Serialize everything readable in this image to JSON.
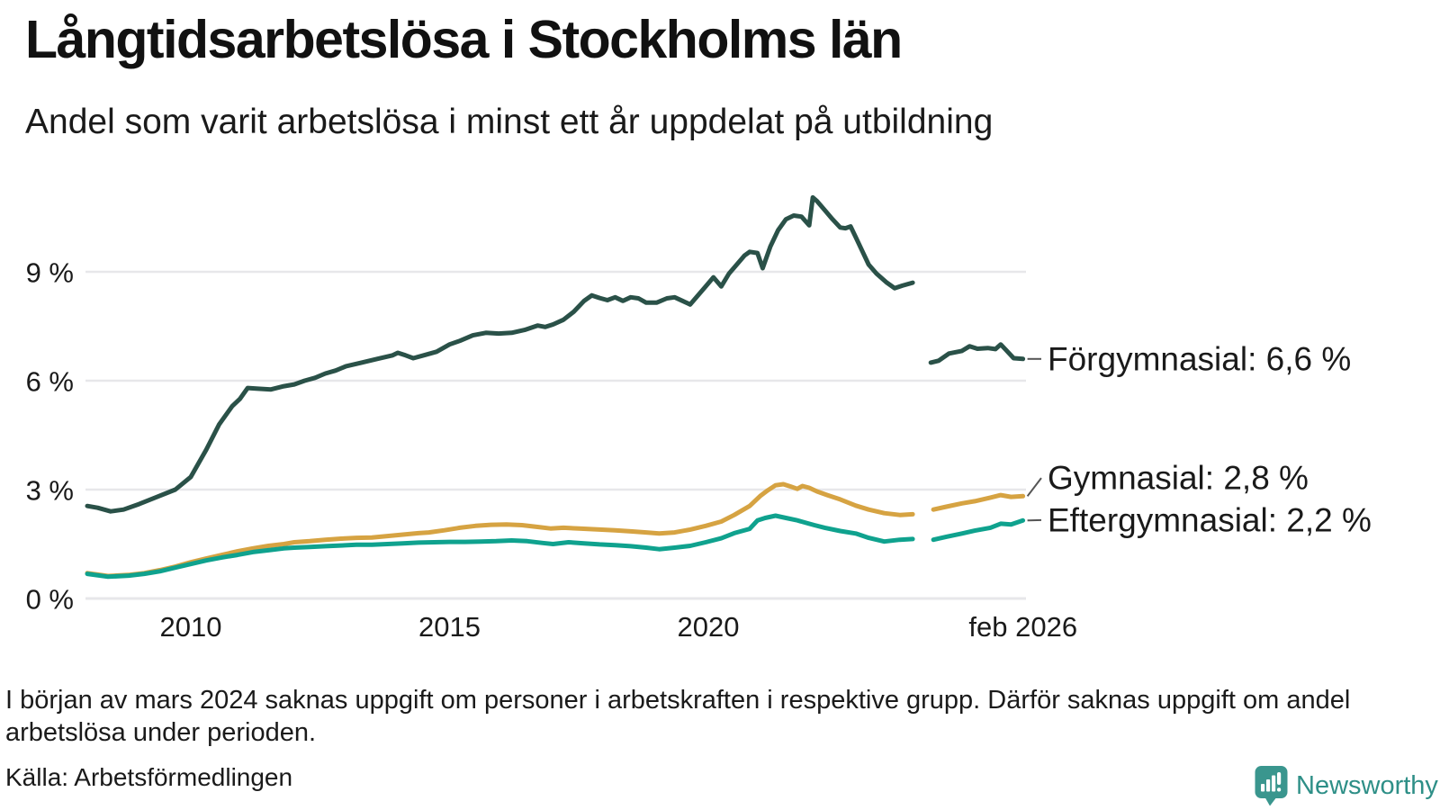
{
  "header": {
    "title": "Långtidsarbetslösa i Stockholms län",
    "subtitle": "Andel som varit arbetslösa i minst ett år uppdelat på utbildning"
  },
  "chart_data": {
    "type": "line",
    "unit": "%",
    "grid_color": "#e7e7ea",
    "text_color": "#1a1a1a",
    "x_axis": {
      "ticks": [
        {
          "label": "2010",
          "year": 2010
        },
        {
          "label": "2015",
          "year": 2015
        },
        {
          "label": "2020",
          "year": 2020
        },
        {
          "label": "feb 2026",
          "year": 2026.083
        }
      ]
    },
    "y_axis": {
      "ticks": [
        {
          "label": "0 %",
          "value": 0
        },
        {
          "label": "3 %",
          "value": 3
        },
        {
          "label": "6 %",
          "value": 6
        },
        {
          "label": "9 %",
          "value": 9
        }
      ],
      "max": 11.3
    },
    "series": [
      {
        "name": "Förgymnasial",
        "color": "#2a5148",
        "end_label": "Förgymnasial: 6,6 %",
        "end_value": "6,6 %",
        "label_value": 6.6,
        "segments": [
          [
            [
              2008.0,
              2.55
            ],
            [
              2008.2,
              2.5
            ],
            [
              2008.45,
              2.4
            ],
            [
              2008.7,
              2.45
            ],
            [
              2009.0,
              2.6
            ],
            [
              2009.35,
              2.8
            ],
            [
              2009.7,
              3.0
            ],
            [
              2010.0,
              3.35
            ],
            [
              2010.3,
              4.1
            ],
            [
              2010.55,
              4.8
            ],
            [
              2010.8,
              5.3
            ],
            [
              2010.95,
              5.5
            ],
            [
              2011.1,
              5.8
            ],
            [
              2011.3,
              5.78
            ],
            [
              2011.55,
              5.76
            ],
            [
              2011.8,
              5.85
            ],
            [
              2012.0,
              5.9
            ],
            [
              2012.2,
              6.0
            ],
            [
              2012.4,
              6.08
            ],
            [
              2012.6,
              6.2
            ],
            [
              2012.8,
              6.28
            ],
            [
              2013.0,
              6.4
            ],
            [
              2013.3,
              6.5
            ],
            [
              2013.6,
              6.6
            ],
            [
              2013.9,
              6.7
            ],
            [
              2014.0,
              6.77
            ],
            [
              2014.15,
              6.7
            ],
            [
              2014.3,
              6.62
            ],
            [
              2014.5,
              6.7
            ],
            [
              2014.75,
              6.8
            ],
            [
              2015.0,
              7.0
            ],
            [
              2015.2,
              7.1
            ],
            [
              2015.45,
              7.25
            ],
            [
              2015.7,
              7.32
            ],
            [
              2015.95,
              7.3
            ],
            [
              2016.2,
              7.32
            ],
            [
              2016.45,
              7.4
            ],
            [
              2016.7,
              7.52
            ],
            [
              2016.85,
              7.48
            ],
            [
              2017.0,
              7.55
            ],
            [
              2017.2,
              7.68
            ],
            [
              2017.4,
              7.9
            ],
            [
              2017.6,
              8.2
            ],
            [
              2017.75,
              8.35
            ],
            [
              2017.9,
              8.28
            ],
            [
              2018.05,
              8.22
            ],
            [
              2018.2,
              8.3
            ],
            [
              2018.35,
              8.2
            ],
            [
              2018.5,
              8.3
            ],
            [
              2018.65,
              8.27
            ],
            [
              2018.8,
              8.15
            ],
            [
              2019.0,
              8.15
            ],
            [
              2019.2,
              8.27
            ],
            [
              2019.35,
              8.3
            ],
            [
              2019.5,
              8.2
            ],
            [
              2019.65,
              8.1
            ],
            [
              2019.8,
              8.35
            ],
            [
              2019.95,
              8.6
            ],
            [
              2020.1,
              8.85
            ],
            [
              2020.25,
              8.6
            ],
            [
              2020.4,
              8.95
            ],
            [
              2020.55,
              9.2
            ],
            [
              2020.7,
              9.45
            ],
            [
              2020.8,
              9.55
            ],
            [
              2020.95,
              9.52
            ],
            [
              2021.05,
              9.1
            ],
            [
              2021.2,
              9.7
            ],
            [
              2021.35,
              10.15
            ],
            [
              2021.5,
              10.45
            ],
            [
              2021.65,
              10.55
            ],
            [
              2021.8,
              10.52
            ],
            [
              2021.95,
              10.28
            ],
            [
              2022.02,
              11.05
            ],
            [
              2022.1,
              10.95
            ],
            [
              2022.25,
              10.7
            ],
            [
              2022.4,
              10.45
            ],
            [
              2022.55,
              10.22
            ],
            [
              2022.65,
              10.2
            ],
            [
              2022.75,
              10.25
            ],
            [
              2022.85,
              9.95
            ],
            [
              2023.0,
              9.5
            ],
            [
              2023.1,
              9.2
            ],
            [
              2023.25,
              8.95
            ],
            [
              2023.45,
              8.7
            ],
            [
              2023.6,
              8.55
            ],
            [
              2023.75,
              8.62
            ],
            [
              2023.95,
              8.7
            ]
          ],
          [
            [
              2024.3,
              6.5
            ],
            [
              2024.45,
              6.55
            ],
            [
              2024.65,
              6.75
            ],
            [
              2024.9,
              6.82
            ],
            [
              2025.05,
              6.95
            ],
            [
              2025.2,
              6.88
            ],
            [
              2025.4,
              6.9
            ],
            [
              2025.55,
              6.87
            ],
            [
              2025.65,
              7.0
            ],
            [
              2025.75,
              6.85
            ],
            [
              2025.9,
              6.62
            ],
            [
              2026.08,
              6.6
            ]
          ]
        ]
      },
      {
        "name": "Gymnasial",
        "color": "#d6a342",
        "end_label": "Gymnasial: 2,8 %",
        "end_value": "2,8 %",
        "label_value": 3.32,
        "segments": [
          [
            [
              2008.0,
              0.7
            ],
            [
              2008.4,
              0.62
            ],
            [
              2008.8,
              0.65
            ],
            [
              2009.1,
              0.7
            ],
            [
              2009.4,
              0.78
            ],
            [
              2009.7,
              0.88
            ],
            [
              2010.0,
              1.0
            ],
            [
              2010.3,
              1.1
            ],
            [
              2010.6,
              1.2
            ],
            [
              2010.9,
              1.3
            ],
            [
              2011.2,
              1.38
            ],
            [
              2011.5,
              1.45
            ],
            [
              2011.8,
              1.5
            ],
            [
              2012.0,
              1.55
            ],
            [
              2012.3,
              1.58
            ],
            [
              2012.6,
              1.62
            ],
            [
              2012.9,
              1.65
            ],
            [
              2013.2,
              1.67
            ],
            [
              2013.5,
              1.68
            ],
            [
              2013.8,
              1.72
            ],
            [
              2014.1,
              1.76
            ],
            [
              2014.4,
              1.8
            ],
            [
              2014.6,
              1.82
            ],
            [
              2014.9,
              1.88
            ],
            [
              2015.2,
              1.95
            ],
            [
              2015.5,
              2.0
            ],
            [
              2015.8,
              2.03
            ],
            [
              2016.1,
              2.04
            ],
            [
              2016.4,
              2.02
            ],
            [
              2016.7,
              1.97
            ],
            [
              2016.95,
              1.93
            ],
            [
              2017.2,
              1.95
            ],
            [
              2017.5,
              1.93
            ],
            [
              2017.9,
              1.9
            ],
            [
              2018.2,
              1.88
            ],
            [
              2018.5,
              1.85
            ],
            [
              2018.8,
              1.82
            ],
            [
              2019.05,
              1.79
            ],
            [
              2019.35,
              1.82
            ],
            [
              2019.65,
              1.9
            ],
            [
              2019.95,
              2.0
            ],
            [
              2020.25,
              2.12
            ],
            [
              2020.5,
              2.3
            ],
            [
              2020.8,
              2.55
            ],
            [
              2021.0,
              2.82
            ],
            [
              2021.15,
              2.98
            ],
            [
              2021.3,
              3.12
            ],
            [
              2021.45,
              3.15
            ],
            [
              2021.6,
              3.08
            ],
            [
              2021.72,
              3.02
            ],
            [
              2021.82,
              3.1
            ],
            [
              2021.95,
              3.05
            ],
            [
              2022.1,
              2.95
            ],
            [
              2022.3,
              2.85
            ],
            [
              2022.55,
              2.73
            ],
            [
              2022.85,
              2.56
            ],
            [
              2023.1,
              2.45
            ],
            [
              2023.4,
              2.35
            ],
            [
              2023.7,
              2.3
            ],
            [
              2023.95,
              2.32
            ]
          ],
          [
            [
              2024.35,
              2.45
            ],
            [
              2024.6,
              2.53
            ],
            [
              2024.9,
              2.62
            ],
            [
              2025.15,
              2.68
            ],
            [
              2025.45,
              2.78
            ],
            [
              2025.65,
              2.85
            ],
            [
              2025.85,
              2.8
            ],
            [
              2026.08,
              2.82
            ]
          ]
        ]
      },
      {
        "name": "Eftergymnasial",
        "color": "#0fa28e",
        "end_label": "Eftergymnasial: 2,2 %",
        "end_value": "2,2 %",
        "label_value": 2.16,
        "segments": [
          [
            [
              2008.0,
              0.68
            ],
            [
              2008.4,
              0.6
            ],
            [
              2008.8,
              0.63
            ],
            [
              2009.1,
              0.68
            ],
            [
              2009.4,
              0.75
            ],
            [
              2009.7,
              0.85
            ],
            [
              2010.0,
              0.95
            ],
            [
              2010.3,
              1.05
            ],
            [
              2010.6,
              1.13
            ],
            [
              2010.9,
              1.2
            ],
            [
              2011.2,
              1.28
            ],
            [
              2011.5,
              1.33
            ],
            [
              2011.8,
              1.38
            ],
            [
              2012.0,
              1.4
            ],
            [
              2012.3,
              1.42
            ],
            [
              2012.6,
              1.44
            ],
            [
              2012.9,
              1.46
            ],
            [
              2013.2,
              1.48
            ],
            [
              2013.5,
              1.48
            ],
            [
              2013.8,
              1.5
            ],
            [
              2014.1,
              1.52
            ],
            [
              2014.4,
              1.54
            ],
            [
              2014.7,
              1.55
            ],
            [
              2015.0,
              1.56
            ],
            [
              2015.3,
              1.56
            ],
            [
              2015.6,
              1.57
            ],
            [
              2015.9,
              1.58
            ],
            [
              2016.2,
              1.6
            ],
            [
              2016.5,
              1.58
            ],
            [
              2016.8,
              1.53
            ],
            [
              2017.0,
              1.5
            ],
            [
              2017.3,
              1.55
            ],
            [
              2017.6,
              1.52
            ],
            [
              2017.9,
              1.49
            ],
            [
              2018.2,
              1.47
            ],
            [
              2018.5,
              1.44
            ],
            [
              2018.8,
              1.4
            ],
            [
              2019.05,
              1.36
            ],
            [
              2019.35,
              1.4
            ],
            [
              2019.65,
              1.45
            ],
            [
              2019.95,
              1.55
            ],
            [
              2020.25,
              1.66
            ],
            [
              2020.5,
              1.8
            ],
            [
              2020.8,
              1.92
            ],
            [
              2020.95,
              2.15
            ],
            [
              2021.1,
              2.22
            ],
            [
              2021.3,
              2.28
            ],
            [
              2021.5,
              2.22
            ],
            [
              2021.7,
              2.16
            ],
            [
              2021.9,
              2.08
            ],
            [
              2022.05,
              2.02
            ],
            [
              2022.25,
              1.95
            ],
            [
              2022.55,
              1.86
            ],
            [
              2022.85,
              1.79
            ],
            [
              2023.1,
              1.67
            ],
            [
              2023.4,
              1.57
            ],
            [
              2023.7,
              1.62
            ],
            [
              2023.95,
              1.64
            ]
          ],
          [
            [
              2024.35,
              1.62
            ],
            [
              2024.6,
              1.7
            ],
            [
              2024.9,
              1.79
            ],
            [
              2025.15,
              1.87
            ],
            [
              2025.45,
              1.95
            ],
            [
              2025.65,
              2.06
            ],
            [
              2025.85,
              2.04
            ],
            [
              2026.08,
              2.15
            ]
          ]
        ]
      }
    ]
  },
  "footer": {
    "note": "I början av mars 2024 saknas uppgift om personer i arbetskraften i respektive grupp. Därför saknas uppgift om andel arbetslösa under perioden.",
    "source": "Källa: Arbetsförmedlingen"
  },
  "branding": {
    "name": "Newsworthy",
    "color": "#2e8f87",
    "icon_color": "#3a968e"
  }
}
